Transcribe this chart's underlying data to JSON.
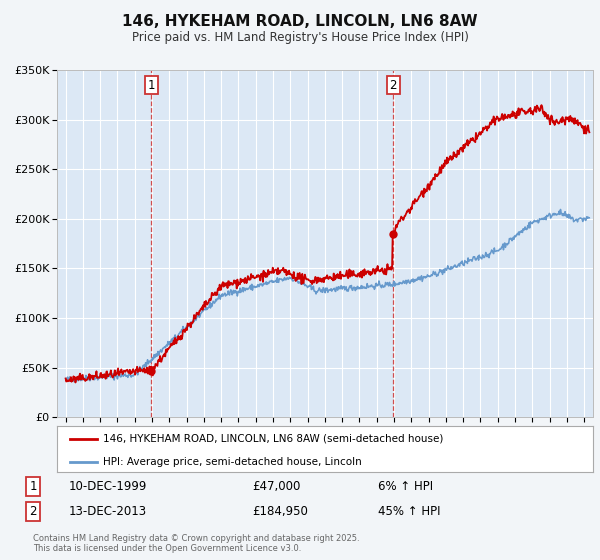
{
  "title": "146, HYKEHAM ROAD, LINCOLN, LN6 8AW",
  "subtitle": "Price paid vs. HM Land Registry's House Price Index (HPI)",
  "background_color": "#f2f5f8",
  "plot_bg_color": "#dce8f5",
  "grid_color": "#ffffff",
  "ylim": [
    0,
    350000
  ],
  "yticks": [
    0,
    50000,
    100000,
    150000,
    200000,
    250000,
    300000,
    350000
  ],
  "ytick_labels": [
    "£0",
    "£50K",
    "£100K",
    "£150K",
    "£200K",
    "£250K",
    "£300K",
    "£350K"
  ],
  "xlim_start": 1994.5,
  "xlim_end": 2025.5,
  "xticks": [
    1995,
    1996,
    1997,
    1998,
    1999,
    2000,
    2001,
    2002,
    2003,
    2004,
    2005,
    2006,
    2007,
    2008,
    2009,
    2010,
    2011,
    2012,
    2013,
    2014,
    2015,
    2016,
    2017,
    2018,
    2019,
    2020,
    2021,
    2022,
    2023,
    2024,
    2025
  ],
  "sale1_x": 1999.95,
  "sale1_y": 47000,
  "sale1_label": "1",
  "sale1_date": "10-DEC-1999",
  "sale1_price": "£47,000",
  "sale1_hpi": "6% ↑ HPI",
  "sale2_x": 2013.95,
  "sale2_y": 184950,
  "sale2_label": "2",
  "sale2_date": "13-DEC-2013",
  "sale2_price": "£184,950",
  "sale2_hpi": "45% ↑ HPI",
  "red_line_color": "#cc0000",
  "blue_line_color": "#6699cc",
  "marker_color": "#cc0000",
  "vline_color": "#cc3333",
  "legend_label_red": "146, HYKEHAM ROAD, LINCOLN, LN6 8AW (semi-detached house)",
  "legend_label_blue": "HPI: Average price, semi-detached house, Lincoln",
  "footer_text": "Contains HM Land Registry data © Crown copyright and database right 2025.\nThis data is licensed under the Open Government Licence v3.0."
}
